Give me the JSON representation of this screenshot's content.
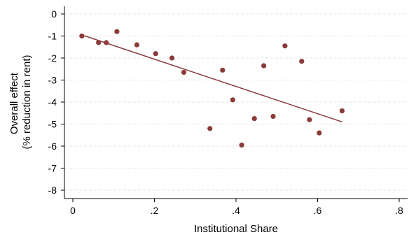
{
  "chart_data": {
    "type": "scatter",
    "title": "",
    "xlabel": "Institutional Share",
    "ylabel_lines": [
      "Overall effect",
      "(% reduction in rent)"
    ],
    "xlim": [
      0,
      0.8
    ],
    "ylim": [
      -8,
      0
    ],
    "x_ticks": [
      0,
      0.2,
      0.4,
      0.6,
      0.8
    ],
    "x_tick_labels": [
      "0",
      ".2",
      ".4",
      ".6",
      ".8"
    ],
    "y_ticks": [
      0,
      -1,
      -2,
      -3,
      -4,
      -5,
      -6,
      -7,
      -8
    ],
    "y_tick_labels": [
      "0",
      "-1",
      "-2",
      "-3",
      "-4",
      "-5",
      "-6",
      "-7",
      "-8"
    ],
    "grid": "horizontal dashed",
    "color": "#8B3A3A",
    "points": [
      {
        "x": 0.022,
        "y": -1.0
      },
      {
        "x": 0.063,
        "y": -1.3
      },
      {
        "x": 0.082,
        "y": -1.3
      },
      {
        "x": 0.108,
        "y": -0.8
      },
      {
        "x": 0.157,
        "y": -1.4
      },
      {
        "x": 0.203,
        "y": -1.8
      },
      {
        "x": 0.243,
        "y": -2.0
      },
      {
        "x": 0.272,
        "y": -2.65
      },
      {
        "x": 0.336,
        "y": -5.2
      },
      {
        "x": 0.367,
        "y": -2.55
      },
      {
        "x": 0.392,
        "y": -3.9
      },
      {
        "x": 0.414,
        "y": -5.95
      },
      {
        "x": 0.445,
        "y": -4.75
      },
      {
        "x": 0.468,
        "y": -2.35
      },
      {
        "x": 0.491,
        "y": -4.65
      },
      {
        "x": 0.52,
        "y": -1.45
      },
      {
        "x": 0.561,
        "y": -2.15
      },
      {
        "x": 0.58,
        "y": -4.8
      },
      {
        "x": 0.604,
        "y": -5.4
      },
      {
        "x": 0.66,
        "y": -4.4
      }
    ],
    "fit_line": {
      "x": [
        0.022,
        0.66
      ],
      "y": [
        -0.95,
        -4.9
      ]
    }
  }
}
